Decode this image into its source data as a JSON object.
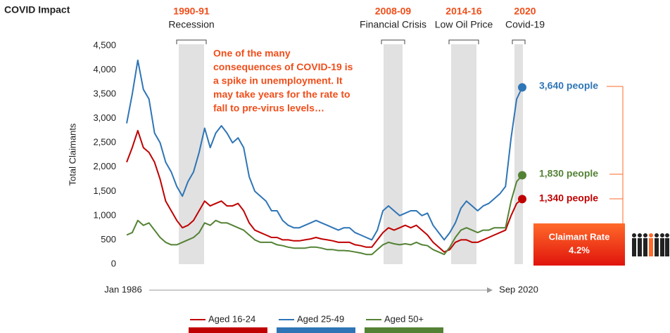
{
  "chart_data": {
    "type": "line",
    "title": "COVID Impact",
    "y_label": "Total Claimants",
    "annotation": [
      "One of the many",
      "consequences of COVID-19 is",
      "a spike in unemployment.  It",
      "may take years for the rate to",
      "fall to pre-virus levels…"
    ],
    "periods": [
      {
        "years": "1990-91",
        "label": "Recession"
      },
      {
        "years": "2008-09",
        "label": "Financial Crisis"
      },
      {
        "years": "2014-16",
        "label": "Low Oil Price"
      },
      {
        "years": "2020",
        "label": "Covid-19"
      }
    ],
    "rate_box": {
      "title": "Claimant Rate",
      "value": 4.2,
      "value_label": "4.2%"
    },
    "categories": [
      "Jan 1986",
      null,
      null,
      null,
      null,
      null,
      null,
      null,
      null,
      null,
      null,
      null,
      null,
      null,
      null,
      null,
      null,
      null,
      null,
      null,
      null,
      null,
      null,
      null,
      null,
      null,
      null,
      null,
      null,
      null,
      null,
      null,
      null,
      null,
      null,
      null,
      null,
      null,
      null,
      null,
      null,
      null,
      null,
      null,
      null,
      null,
      null,
      null,
      null,
      null,
      null,
      null,
      null,
      null,
      null,
      null,
      null,
      null,
      null,
      null,
      null,
      null,
      null,
      null,
      null,
      null,
      null,
      null,
      null,
      null,
      null,
      "Sep 2020"
    ],
    "series": [
      {
        "name": "Aged 16-24",
        "color": "#c00000",
        "end_label": "1,340 people",
        "values": [
          2100,
          2400,
          2750,
          2400,
          2300,
          2100,
          1750,
          1300,
          1100,
          900,
          750,
          800,
          900,
          1100,
          1300,
          1200,
          1250,
          1300,
          1200,
          1200,
          1250,
          1100,
          850,
          700,
          650,
          600,
          550,
          550,
          500,
          500,
          480,
          480,
          500,
          520,
          550,
          520,
          500,
          480,
          450,
          450,
          450,
          400,
          380,
          350,
          350,
          500,
          650,
          750,
          700,
          750,
          800,
          750,
          800,
          700,
          600,
          450,
          350,
          250,
          300,
          450,
          500,
          500,
          450,
          450,
          500,
          550,
          600,
          650,
          700,
          1000,
          1250,
          1340
        ]
      },
      {
        "name": "Aged 25-49",
        "color": "#2e75b6",
        "end_label": "3,640 people",
        "values": [
          2900,
          3500,
          4200,
          3600,
          3400,
          2700,
          2500,
          2100,
          1900,
          1600,
          1400,
          1700,
          1900,
          2300,
          2800,
          2400,
          2700,
          2850,
          2700,
          2500,
          2600,
          2400,
          1800,
          1500,
          1400,
          1300,
          1100,
          1100,
          900,
          800,
          750,
          750,
          800,
          850,
          900,
          850,
          800,
          750,
          700,
          750,
          750,
          650,
          600,
          550,
          500,
          700,
          1100,
          1200,
          1100,
          1000,
          1050,
          1100,
          1100,
          1000,
          1050,
          800,
          650,
          500,
          650,
          850,
          1150,
          1300,
          1200,
          1100,
          1200,
          1250,
          1350,
          1450,
          1600,
          2600,
          3400,
          3640
        ]
      },
      {
        "name": "Aged 50+",
        "color": "#548235",
        "end_label": "1,830 people",
        "values": [
          600,
          650,
          900,
          800,
          850,
          700,
          550,
          450,
          400,
          400,
          450,
          500,
          550,
          650,
          850,
          800,
          900,
          850,
          850,
          800,
          750,
          700,
          600,
          500,
          450,
          450,
          450,
          400,
          380,
          350,
          330,
          330,
          330,
          350,
          350,
          330,
          300,
          300,
          280,
          280,
          270,
          250,
          230,
          200,
          200,
          300,
          400,
          450,
          420,
          400,
          420,
          400,
          450,
          400,
          380,
          300,
          250,
          200,
          350,
          550,
          700,
          750,
          700,
          650,
          700,
          700,
          750,
          750,
          750,
          1300,
          1700,
          1830
        ]
      }
    ],
    "ylim": [
      0,
      4500
    ],
    "yticks": [
      0,
      500,
      {
        "value": 1000,
        "label": "1,000"
      },
      {
        "value": 1500,
        "label": "1,500"
      },
      {
        "value": 2000,
        "label": "2,000"
      },
      {
        "value": 2500,
        "label": "2,500"
      },
      {
        "value": 3000,
        "label": "3,000"
      },
      {
        "value": 3500,
        "label": "3,500"
      },
      {
        "value": 4000,
        "label": "4,000"
      },
      {
        "value": 4500,
        "label": "4,500"
      }
    ],
    "grid": false,
    "legend": "bottom"
  }
}
